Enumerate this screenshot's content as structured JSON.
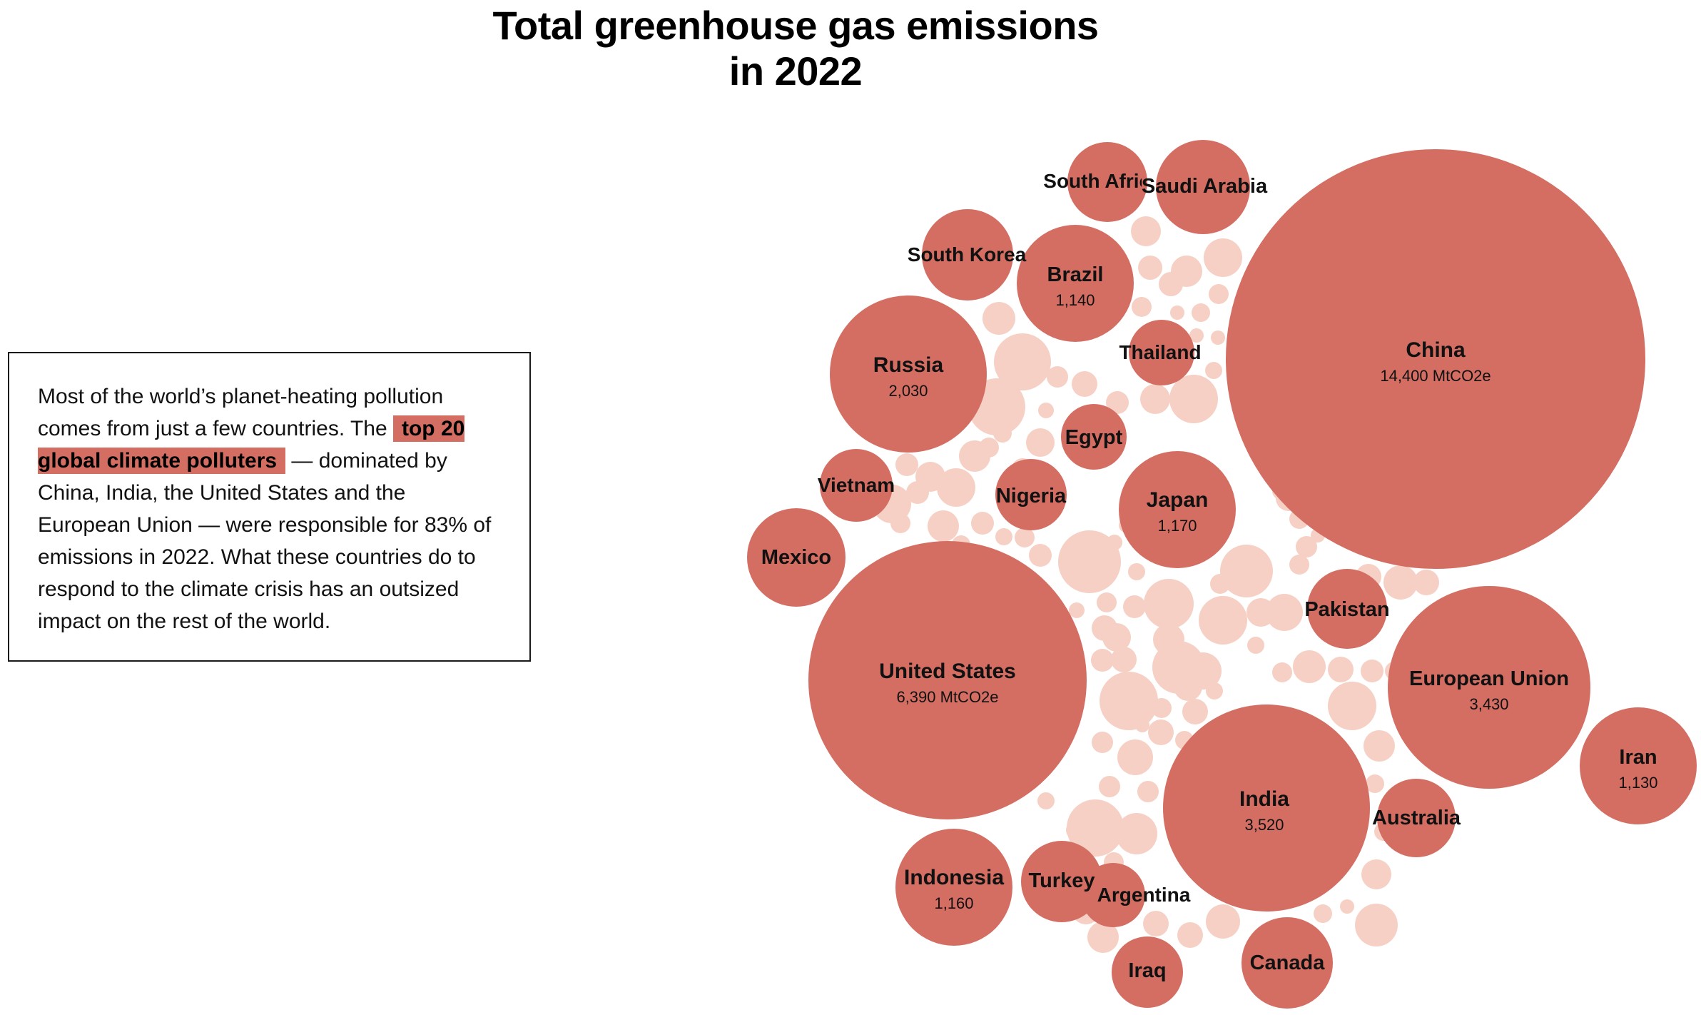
{
  "title": {
    "line1": "Total greenhouse gas emissions",
    "line2": "in 2022"
  },
  "intro": {
    "before": "Most of the world’s planet-heating pollution comes from just a few countries. The ",
    "highlight": "top 20 global climate polluters",
    "after": " — dominated by China, India, the United States and the European Union — were responsible for 83% of emissions in 2022. What these countries do to respond to the climate crisis has an outsized impact on the rest of the world."
  },
  "colors": {
    "major": "#d46e63",
    "minor": "#f6d0c4"
  },
  "chart_data": {
    "type": "bubble",
    "title": "Total greenhouse gas emissions in 2022",
    "unit": "MtCO2e",
    "series": [
      {
        "name": "China",
        "value": 14400,
        "label": "14,400 MtCO2e"
      },
      {
        "name": "United States",
        "value": 6390,
        "label": "6,390 MtCO2e"
      },
      {
        "name": "India",
        "value": 3520,
        "label": "3,520"
      },
      {
        "name": "European Union",
        "value": 3430,
        "label": "3,430"
      },
      {
        "name": "Russia",
        "value": 2030,
        "label": "2,030"
      },
      {
        "name": "Japan",
        "value": 1170,
        "label": "1,170"
      },
      {
        "name": "Indonesia",
        "value": 1160,
        "label": "1,160"
      },
      {
        "name": "Brazil",
        "value": 1140,
        "label": "1,140"
      },
      {
        "name": "Iran",
        "value": 1130,
        "label": "1,130"
      },
      {
        "name": "Saudi Arabia",
        "value": 800
      },
      {
        "name": "Canada",
        "value": 720
      },
      {
        "name": "Mexico",
        "value": 810
      },
      {
        "name": "South Korea",
        "value": 690
      },
      {
        "name": "Pakistan",
        "value": 540
      },
      {
        "name": "Turkey",
        "value": 580
      },
      {
        "name": "Australia",
        "value": 540
      },
      {
        "name": "South Africa",
        "value": 550
      },
      {
        "name": "Vietnam",
        "value": 430
      },
      {
        "name": "Nigeria",
        "value": 420
      },
      {
        "name": "Iraq",
        "value": 410
      },
      {
        "name": "Thailand",
        "value": 370
      },
      {
        "name": "Egypt",
        "value": 360
      },
      {
        "name": "Argentina",
        "value": 350
      }
    ]
  }
}
